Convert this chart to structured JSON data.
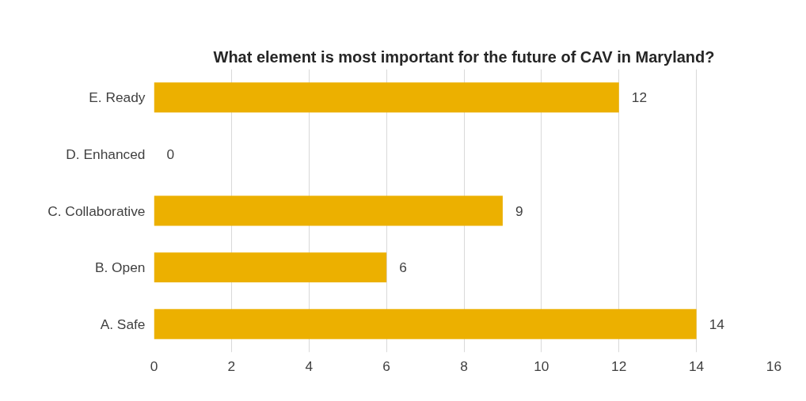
{
  "chart_data": {
    "type": "bar",
    "orientation": "horizontal",
    "title": "What element is most important for the future of CAV in Maryland?",
    "categories": [
      "E. Ready",
      "D. Enhanced",
      "C. Collaborative",
      "B. Open",
      "A. Safe"
    ],
    "values": [
      12,
      0,
      9,
      6,
      14
    ],
    "color": "#ecb000",
    "xlim": [
      0,
      16
    ],
    "xticks": [
      0,
      2,
      4,
      6,
      8,
      10,
      12,
      14,
      16
    ],
    "grid": "x",
    "data_labels": true
  }
}
